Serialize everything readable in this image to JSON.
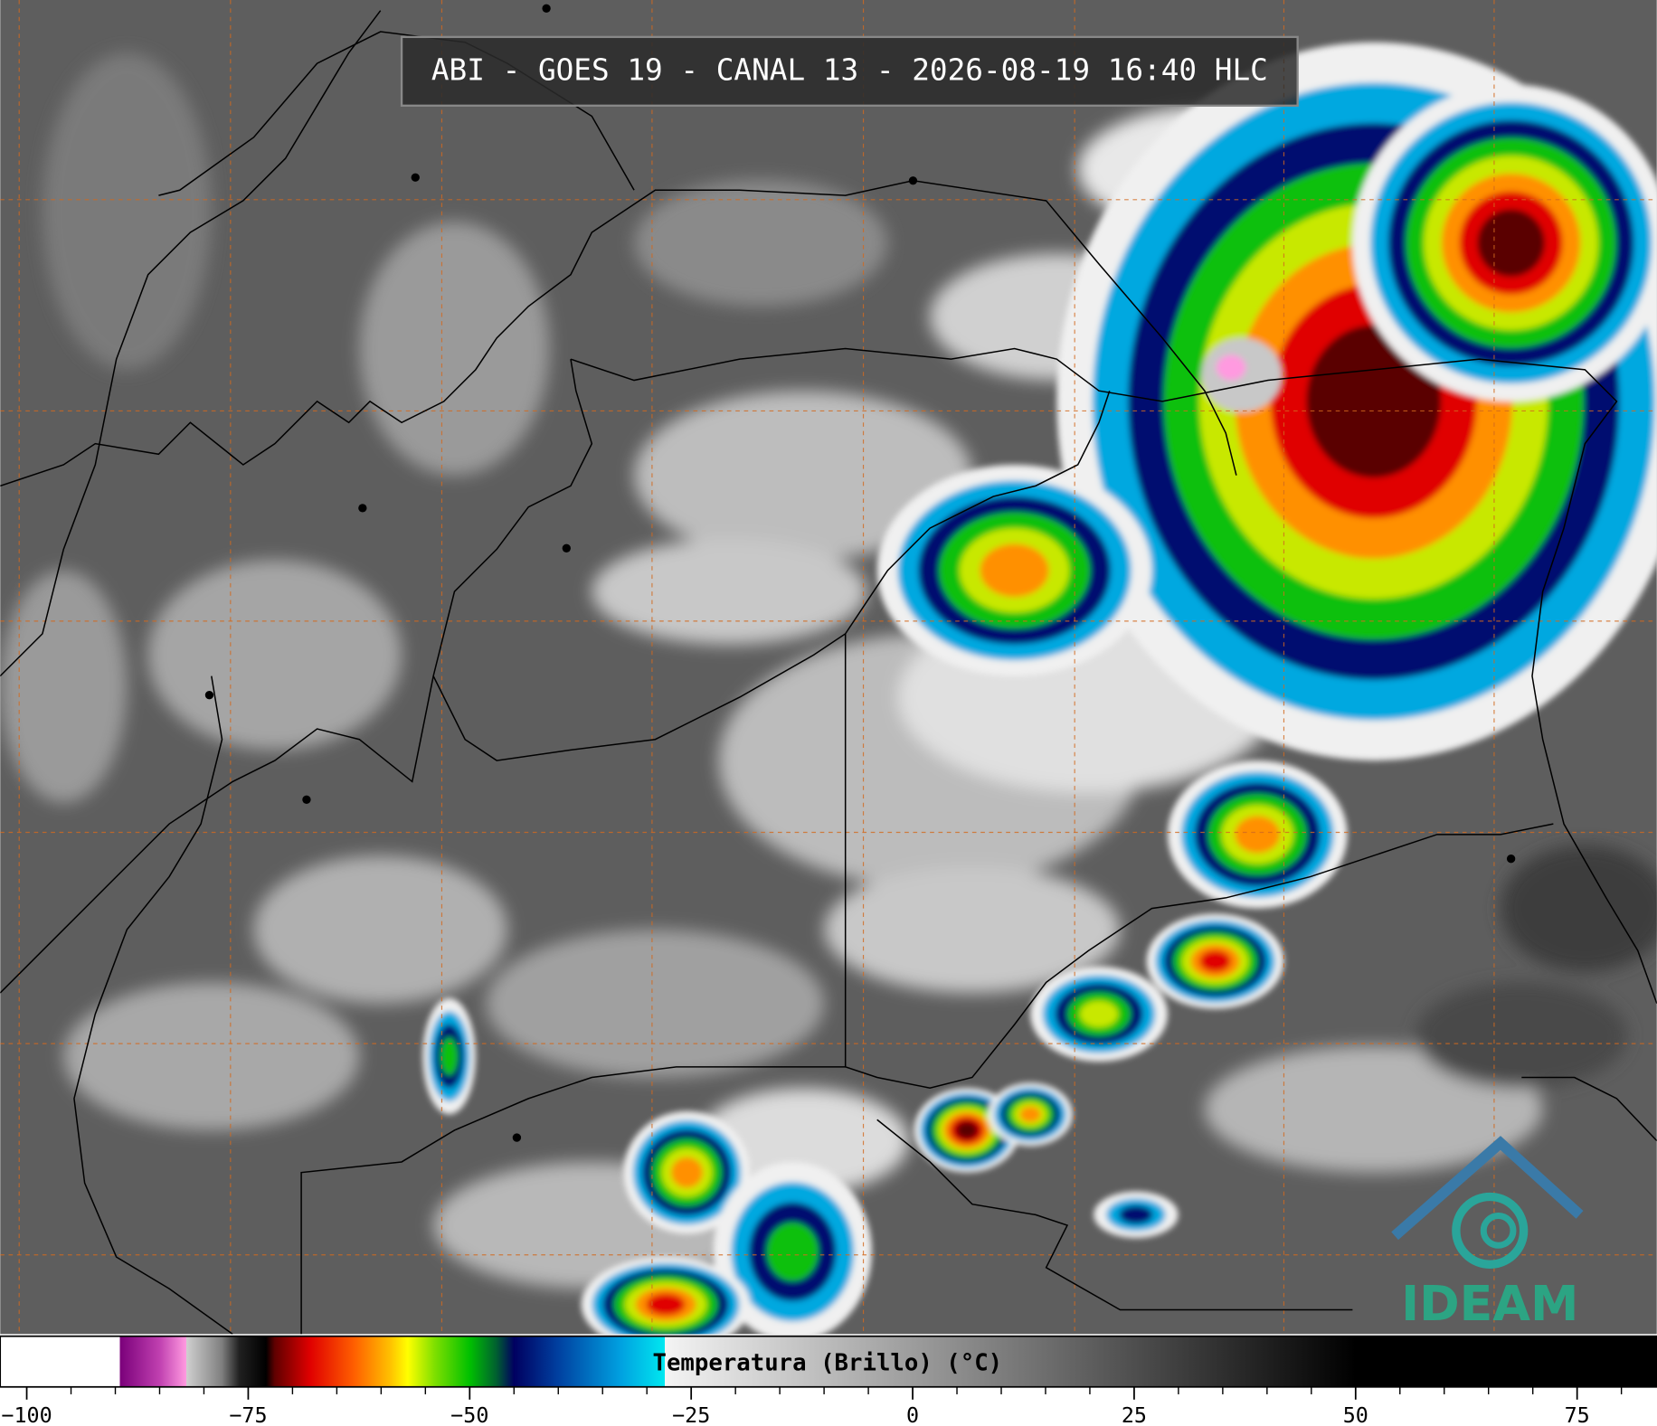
{
  "chart_data": {
    "type": "colorbar-map",
    "title": "ABI - GOES 19 - CANAL 13 - 2026-08-19 16:40 HLC",
    "colorbar_label": "Temperatura (Brillo) (°C)",
    "logo": "IDEAM",
    "xlim": [
      -103,
      84
    ],
    "xticks": [
      {
        "value": -100,
        "label": "−100"
      },
      {
        "value": -75,
        "label": "−75"
      },
      {
        "value": -50,
        "label": "−50"
      },
      {
        "value": -25,
        "label": "−25"
      },
      0,
      25,
      50,
      75
    ],
    "minor_xticks": [
      -95,
      -90,
      -85,
      -80,
      -70,
      -65,
      -60,
      -55,
      -45,
      -40,
      -35,
      -30,
      -20,
      -15,
      -10,
      -5,
      5,
      10,
      15,
      20,
      30,
      35,
      40,
      45,
      55,
      60,
      65,
      70,
      80
    ],
    "colormap": [
      {
        "value": -103,
        "color": "#ffffff"
      },
      {
        "value": -89.5,
        "color": "#ffffff"
      },
      {
        "value": -89.5,
        "color": "#7a007a"
      },
      {
        "value": -85,
        "color": "#c040b0"
      },
      {
        "value": -82,
        "color": "#ff9ae0"
      },
      {
        "value": -82,
        "color": "#d0d0d0"
      },
      {
        "value": -78,
        "color": "#808080"
      },
      {
        "value": -76,
        "color": "#202020"
      },
      {
        "value": -73,
        "color": "#000000"
      },
      {
        "value": -72,
        "color": "#600000"
      },
      {
        "value": -68,
        "color": "#e00000"
      },
      {
        "value": -63,
        "color": "#ff6000"
      },
      {
        "value": -59,
        "color": "#ffc000"
      },
      {
        "value": -57,
        "color": "#ffff00"
      },
      {
        "value": -54,
        "color": "#80e000"
      },
      {
        "value": -50,
        "color": "#00c000"
      },
      {
        "value": -47,
        "color": "#006030"
      },
      {
        "value": -45,
        "color": "#000060"
      },
      {
        "value": -40,
        "color": "#0040a0"
      },
      {
        "value": -33,
        "color": "#00a0e0"
      },
      {
        "value": -28,
        "color": "#00e8f0"
      },
      {
        "value": -28,
        "color": "#f4f4f4"
      },
      {
        "value": 50,
        "color": "#000000"
      },
      {
        "value": 84,
        "color": "#000000"
      }
    ]
  }
}
